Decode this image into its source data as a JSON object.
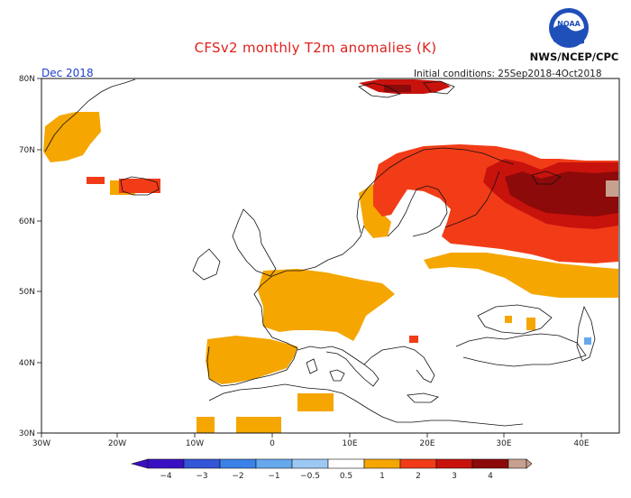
{
  "header": {
    "title": "CFSv2 monthly T2m anomalies (K)",
    "agency": "NWS/NCEP/CPC",
    "logo_text": "NOAA",
    "month": "Dec 2018",
    "initial_conditions": "Initial conditions: 25Sep2018-4Oct2018"
  },
  "axes": {
    "lon_labels": [
      "30W",
      "20W",
      "10W",
      "0",
      "10E",
      "20E",
      "30E",
      "40E"
    ],
    "lat_labels": [
      "30N",
      "40N",
      "50N",
      "60N",
      "70N",
      "80N"
    ]
  },
  "colorbar": {
    "labels": [
      "−4",
      "−3",
      "−2",
      "−1",
      "−0.5",
      "0.5",
      "1",
      "2",
      "3",
      "4"
    ],
    "colors": [
      "#3a0fc4",
      "#3355d8",
      "#3a82e8",
      "#66a8ee",
      "#ffffff",
      "#f5a600",
      "#f23c18",
      "#c8120c",
      "#8c0a0a",
      "#c8a090"
    ]
  }
}
